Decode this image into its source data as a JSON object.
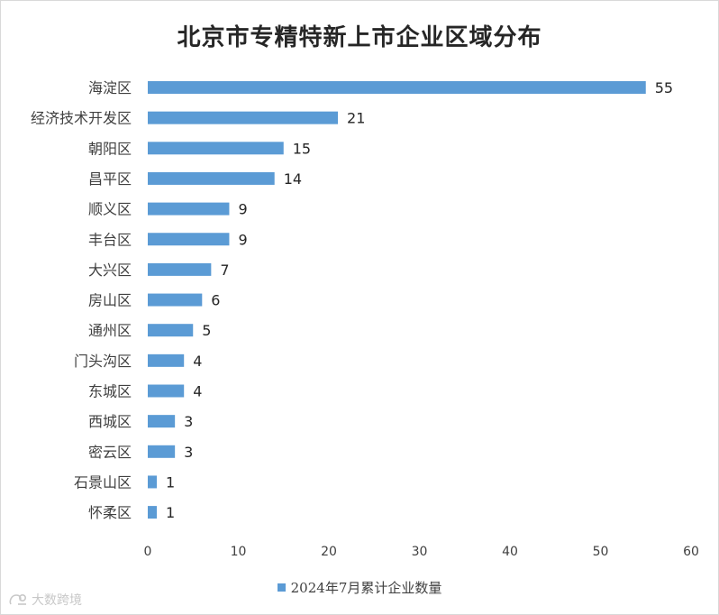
{
  "chart_data": {
    "type": "bar",
    "orientation": "horizontal",
    "title": "北京市专精特新上市企业区域分布",
    "categories": [
      "海淀区",
      "经济技术开发区",
      "朝阳区",
      "昌平区",
      "顺义区",
      "丰台区",
      "大兴区",
      "房山区",
      "通州区",
      "门头沟区",
      "东城区",
      "西城区",
      "密云区",
      "石景山区",
      "怀柔区"
    ],
    "series": [
      {
        "name": "2024年7月累计企业数量",
        "values": [
          55,
          21,
          15,
          14,
          9,
          9,
          7,
          6,
          5,
          4,
          4,
          3,
          3,
          1,
          1
        ]
      }
    ],
    "xlim": [
      0,
      60
    ],
    "x_ticks": [
      "0",
      "10",
      "20",
      "30",
      "40",
      "50",
      "60"
    ],
    "data_labels": true,
    "grid": false,
    "legend_position": "bottom",
    "bar_color": "#5b9bd5"
  },
  "watermark": {
    "text": "大数跨境",
    "icon": "watermark-logo-icon"
  }
}
